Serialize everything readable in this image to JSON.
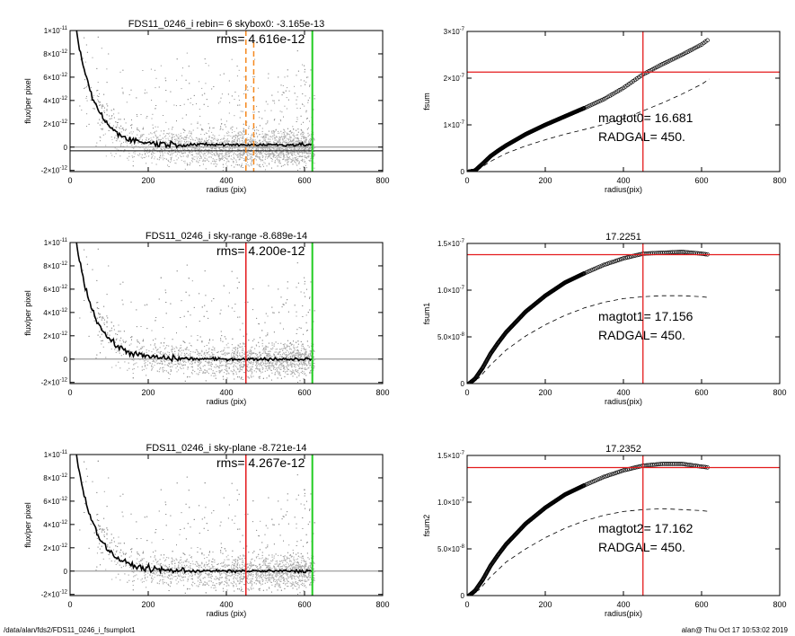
{
  "footer": {
    "path": "/data/alan/fds2/FDS11_0246_i_fsumplot1",
    "stamp": "alan@  Thu Oct 17 10:53:02 2019"
  },
  "colors": {
    "axis": "#000000",
    "scatter": "#8c8c8c",
    "scatter_dense": "#a8a8a8",
    "profile": "#000000",
    "red_marker": "#e41a1c",
    "green_marker": "#22cc22",
    "orange_marker": "#f5891f",
    "gray_line": "#888888"
  },
  "chart_data": [
    {
      "id": "profile-1",
      "type": "scatter",
      "title": "FDS11_0246_i rebin= 6    skybox0: -3.165e-13",
      "annotation": "rms= 4.616e-12",
      "xlabel": "radius (pix)",
      "ylabel": "flux/per pixel",
      "xlim": [
        0,
        800
      ],
      "ylim": [
        -2.1e-12,
        1e-11
      ],
      "xticks": [
        0,
        200,
        400,
        600,
        800
      ],
      "xtick_labels": [
        "0",
        "200",
        "400",
        "600",
        "800"
      ],
      "yticks": [
        1e-11,
        8e-12,
        6e-12,
        4e-12,
        2e-12,
        0,
        -2e-12
      ],
      "ytick_labels": [
        {
          "m": "1×10",
          "e": "-11"
        },
        {
          "m": "8×10",
          "e": "-12"
        },
        {
          "m": "6×10",
          "e": "-12"
        },
        {
          "m": "4×10",
          "e": "-12"
        },
        {
          "m": "2×10",
          "e": "-12"
        },
        {
          "m": "0",
          "e": ""
        },
        {
          "m": "-2×10",
          "e": "-12"
        }
      ],
      "hlines": [
        0,
        -3.165e-13
      ],
      "vlines": [
        {
          "x": 450,
          "color": "orange",
          "dashed": true
        },
        {
          "x": 470,
          "color": "orange",
          "dashed": true,
          "partial": true
        },
        {
          "x": 620,
          "color": "green",
          "dashed": false
        }
      ],
      "profile": {
        "amp": 1.4e-11,
        "scale": 48,
        "plateau": 2e-13,
        "noise": 2.2e-13
      },
      "scatter": {
        "n_points": 4000,
        "max_x": 625,
        "spread": 3.2e-12
      }
    },
    {
      "id": "curve-1",
      "type": "scatter",
      "title": "",
      "ylabel": "fsum",
      "xlabel": "radius(pix)",
      "xlim": [
        0,
        800
      ],
      "ylim": [
        0,
        3e-07
      ],
      "xticks": [
        0,
        200,
        400,
        600,
        800
      ],
      "xtick_labels": [
        "0",
        "200",
        "400",
        "600",
        "800"
      ],
      "yticks": [
        0,
        1e-07,
        2e-07,
        3e-07
      ],
      "ytick_labels": [
        {
          "m": "0",
          "e": ""
        },
        {
          "m": "1×10",
          "e": "-7"
        },
        {
          "m": "2×10",
          "e": "-7"
        },
        {
          "m": "3×10",
          "e": "-7"
        }
      ],
      "labels": [
        "magtot0=  16.681",
        "RADGAL=     450."
      ],
      "marker_x": 450,
      "marker_y": 2.13e-07,
      "series": [
        {
          "style": "circles",
          "x": [
            5,
            20,
            40,
            60,
            80,
            100,
            150,
            200,
            250,
            300,
            350,
            400,
            450,
            500,
            550,
            600,
            620
          ],
          "y": [
            0.0,
            2e-09,
            1.7e-08,
            3.3e-08,
            4.5e-08,
            5.6e-08,
            8e-08,
            1e-07,
            1.18e-07,
            1.36e-07,
            1.55e-07,
            1.79e-07,
            2.08e-07,
            2.3e-07,
            2.5e-07,
            2.72e-07,
            2.84e-07
          ]
        },
        {
          "style": "dashed",
          "x": [
            5,
            30,
            60,
            100,
            150,
            200,
            250,
            300,
            350,
            400,
            450,
            500,
            550,
            600,
            620
          ],
          "y": [
            0.0,
            5e-09,
            2.2e-08,
            3.9e-08,
            5.5e-08,
            6.8e-08,
            8e-08,
            9e-08,
            1.01e-07,
            1.13e-07,
            1.3e-07,
            1.47e-07,
            1.66e-07,
            1.87e-07,
            1.98e-07
          ]
        }
      ]
    },
    {
      "id": "profile-2",
      "type": "scatter",
      "title": "FDS11_0246_i sky-range -8.689e-14",
      "annotation": "rms= 4.200e-12",
      "xlabel": "radius (pix)",
      "ylabel": "flux/per pixel",
      "xlim": [
        0,
        800
      ],
      "ylim": [
        -2.1e-12,
        1e-11
      ],
      "xticks": [
        0,
        200,
        400,
        600,
        800
      ],
      "xtick_labels": [
        "0",
        "200",
        "400",
        "600",
        "800"
      ],
      "yticks": [
        1e-11,
        8e-12,
        6e-12,
        4e-12,
        2e-12,
        0,
        -2e-12
      ],
      "ytick_labels": [
        {
          "m": "1×10",
          "e": "-11"
        },
        {
          "m": "8×10",
          "e": "-12"
        },
        {
          "m": "6×10",
          "e": "-12"
        },
        {
          "m": "4×10",
          "e": "-12"
        },
        {
          "m": "2×10",
          "e": "-12"
        },
        {
          "m": "0",
          "e": ""
        },
        {
          "m": "-2×10",
          "e": "-12"
        }
      ],
      "hlines": [
        0
      ],
      "vlines": [
        {
          "x": 450,
          "color": "red",
          "dashed": false
        },
        {
          "x": 620,
          "color": "green",
          "dashed": false
        }
      ],
      "profile": {
        "amp": 1.4e-11,
        "scale": 48,
        "plateau": 0,
        "noise": 2.2e-13
      },
      "scatter": {
        "n_points": 4000,
        "max_x": 625,
        "spread": 3.2e-12
      }
    },
    {
      "id": "curve-2",
      "type": "scatter",
      "title": "17.2251",
      "ylabel": "fsum1",
      "xlabel": "radius(pix)",
      "xlim": [
        0,
        800
      ],
      "ylim": [
        0,
        1.5e-07
      ],
      "xticks": [
        0,
        200,
        400,
        600,
        800
      ],
      "xtick_labels": [
        "0",
        "200",
        "400",
        "600",
        "800"
      ],
      "yticks": [
        0,
        5e-08,
        1e-07,
        1.5e-07
      ],
      "ytick_labels": [
        {
          "m": "0",
          "e": ""
        },
        {
          "m": "5.0×10",
          "e": "-8"
        },
        {
          "m": "1.0×10",
          "e": "-7"
        },
        {
          "m": "1.5×10",
          "e": "-7"
        }
      ],
      "labels": [
        "magtot1=  17.156",
        "RADGAL=     450."
      ],
      "marker_x": 450,
      "marker_y": 1.38e-07,
      "series": [
        {
          "style": "circles",
          "x": [
            5,
            20,
            40,
            60,
            80,
            100,
            150,
            200,
            250,
            300,
            350,
            400,
            450,
            500,
            550,
            600,
            620
          ],
          "y": [
            0.0,
            5e-09,
            1.7e-08,
            3.2e-08,
            4.4e-08,
            5.5e-08,
            7.7e-08,
            9.4e-08,
            1.08e-07,
            1.18e-07,
            1.27e-07,
            1.34e-07,
            1.39e-07,
            1.4e-07,
            1.41e-07,
            1.39e-07,
            1.38e-07
          ]
        },
        {
          "style": "dashed",
          "x": [
            5,
            30,
            60,
            100,
            150,
            200,
            250,
            300,
            350,
            400,
            450,
            500,
            550,
            600,
            620
          ],
          "y": [
            0.0,
            6e-09,
            2e-08,
            3.6e-08,
            5.1e-08,
            6.3e-08,
            7.3e-08,
            8.1e-08,
            8.7e-08,
            9.1e-08,
            9.3e-08,
            9.4e-08,
            9.4e-08,
            9.3e-08,
            9.2e-08
          ]
        }
      ]
    },
    {
      "id": "profile-3",
      "type": "scatter",
      "title": "FDS11_0246_i sky-plane -8.721e-14",
      "annotation": "rms= 4.267e-12",
      "xlabel": "radius (pix)",
      "ylabel": "flux/per pixel",
      "xlim": [
        0,
        800
      ],
      "ylim": [
        -2.1e-12,
        1e-11
      ],
      "xticks": [
        0,
        200,
        400,
        600,
        800
      ],
      "xtick_labels": [
        "0",
        "200",
        "400",
        "600",
        "800"
      ],
      "yticks": [
        1e-11,
        8e-12,
        6e-12,
        4e-12,
        2e-12,
        0,
        -2e-12
      ],
      "ytick_labels": [
        {
          "m": "1×10",
          "e": "-11"
        },
        {
          "m": "8×10",
          "e": "-12"
        },
        {
          "m": "6×10",
          "e": "-12"
        },
        {
          "m": "4×10",
          "e": "-12"
        },
        {
          "m": "2×10",
          "e": "-12"
        },
        {
          "m": "0",
          "e": ""
        },
        {
          "m": "-2×10",
          "e": "-12"
        }
      ],
      "hlines": [
        0
      ],
      "vlines": [
        {
          "x": 450,
          "color": "red",
          "dashed": false
        },
        {
          "x": 620,
          "color": "green",
          "dashed": false
        }
      ],
      "profile": {
        "amp": 1.4e-11,
        "scale": 48,
        "plateau": 0,
        "noise": 2.2e-13
      },
      "scatter": {
        "n_points": 4000,
        "max_x": 625,
        "spread": 3.2e-12
      }
    },
    {
      "id": "curve-3",
      "type": "scatter",
      "title": "17.2352",
      "ylabel": "fsum2",
      "xlabel": "radius(pix)",
      "xlim": [
        0,
        800
      ],
      "ylim": [
        0,
        1.5e-07
      ],
      "xticks": [
        0,
        200,
        400,
        600,
        800
      ],
      "xtick_labels": [
        "0",
        "200",
        "400",
        "600",
        "800"
      ],
      "yticks": [
        0,
        5e-08,
        1e-07,
        1.5e-07
      ],
      "ytick_labels": [
        {
          "m": "0",
          "e": ""
        },
        {
          "m": "5.0×10",
          "e": "-8"
        },
        {
          "m": "1.0×10",
          "e": "-7"
        },
        {
          "m": "1.5×10",
          "e": "-7"
        }
      ],
      "labels": [
        "magtot2=  17.162",
        "RADGAL=     450."
      ],
      "marker_x": 450,
      "marker_y": 1.37e-07,
      "series": [
        {
          "style": "circles",
          "x": [
            5,
            20,
            40,
            60,
            80,
            100,
            150,
            200,
            250,
            300,
            350,
            400,
            450,
            500,
            550,
            600,
            620
          ],
          "y": [
            0.0,
            5e-09,
            1.7e-08,
            3.2e-08,
            4.4e-08,
            5.5e-08,
            7.7e-08,
            9.4e-08,
            1.08e-07,
            1.18e-07,
            1.27e-07,
            1.34e-07,
            1.39e-07,
            1.41e-07,
            1.41e-07,
            1.38e-07,
            1.37e-07
          ]
        },
        {
          "style": "dashed",
          "x": [
            5,
            30,
            60,
            100,
            150,
            200,
            250,
            300,
            350,
            400,
            450,
            500,
            550,
            600,
            620
          ],
          "y": [
            0.0,
            6e-09,
            2e-08,
            3.6e-08,
            5e-08,
            6.2e-08,
            7.2e-08,
            8e-08,
            8.6e-08,
            9e-08,
            9.2e-08,
            9.3e-08,
            9.2e-08,
            9.1e-08,
            9e-08
          ]
        }
      ]
    }
  ]
}
